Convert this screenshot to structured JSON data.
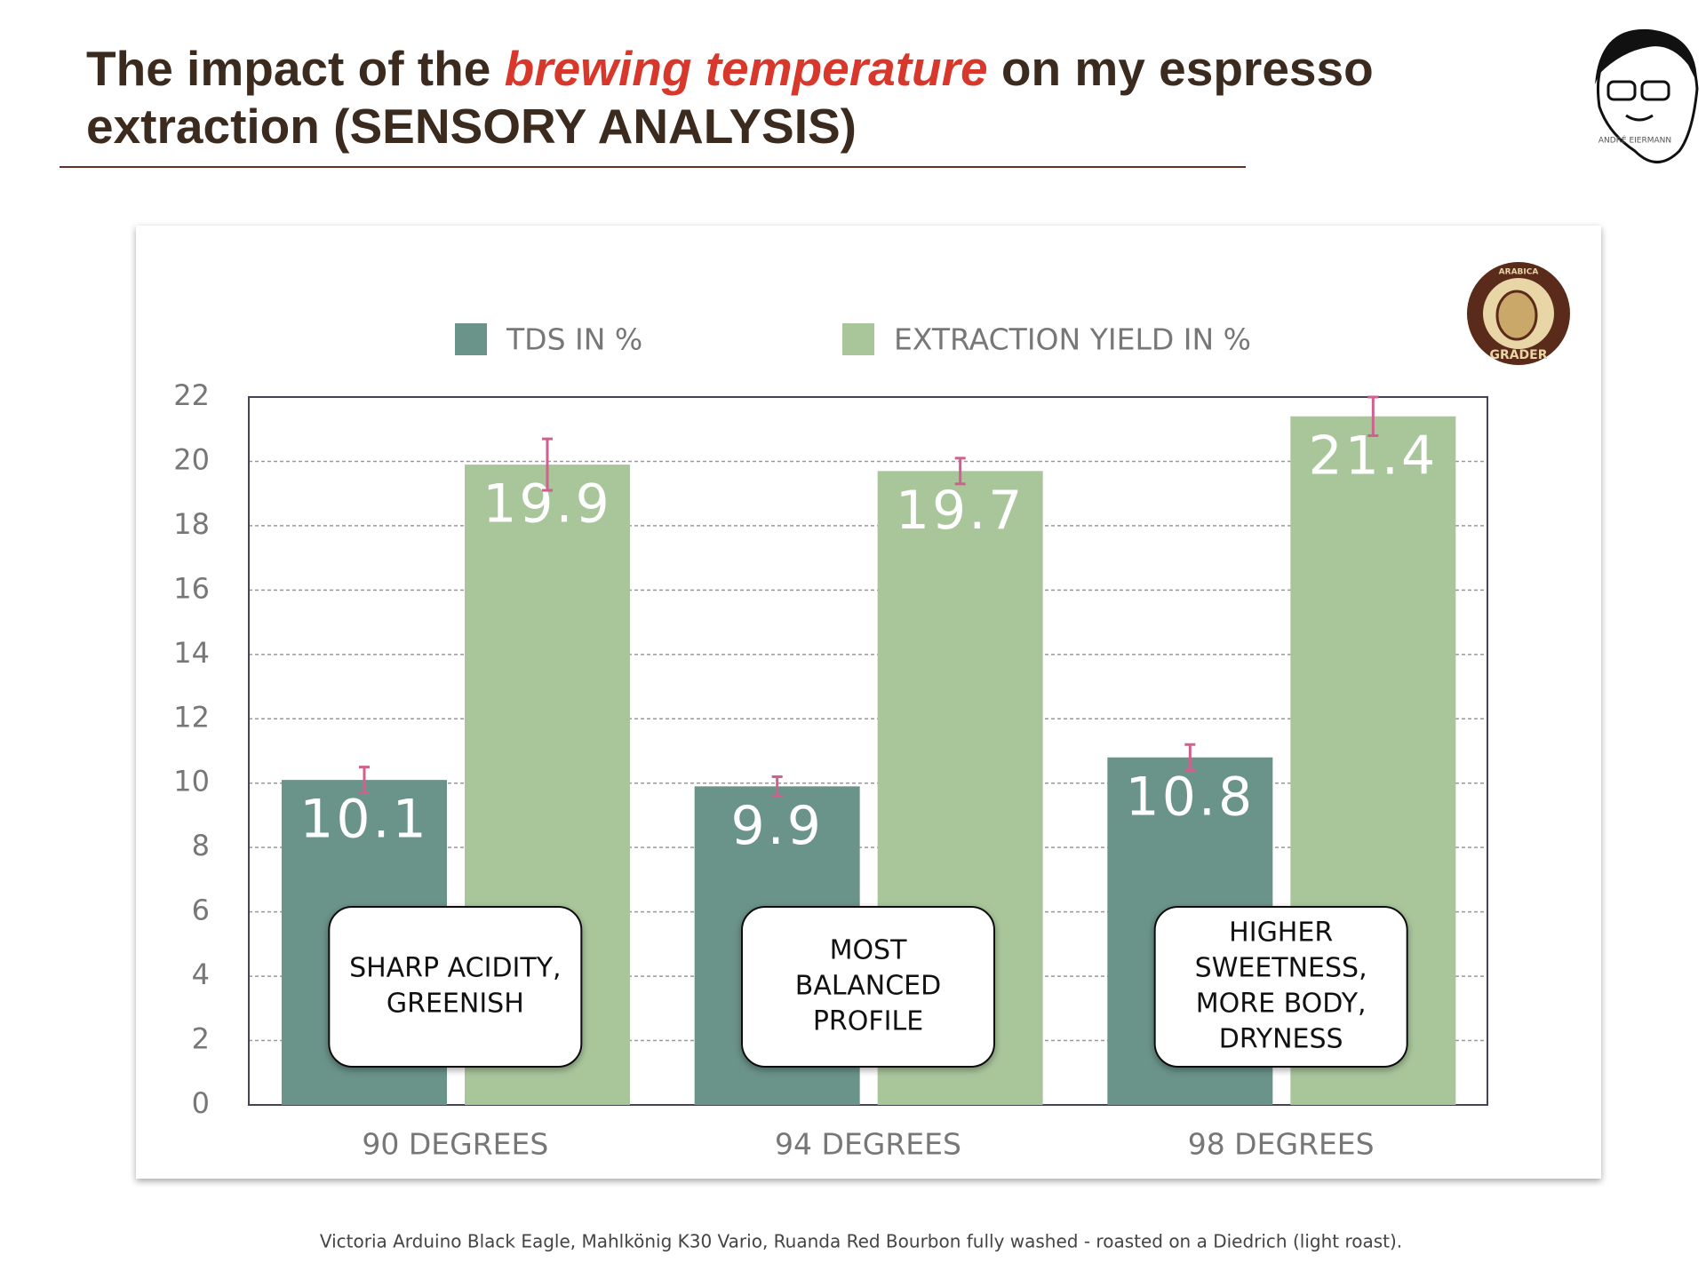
{
  "header": {
    "title": [
      "The impact of the ",
      "brewing temperature",
      " on my espresso",
      "extraction (SENSORY ANALYSIS)"
    ],
    "logo_caption": "ANDRÉ EIERMANN"
  },
  "chart_data": {
    "type": "bar",
    "categories": [
      "90 DEGREES",
      "94 DEGREES",
      "98 DEGREES"
    ],
    "series": [
      {
        "name": "TDS IN %",
        "color": "#6a938a",
        "values": [
          10.1,
          9.9,
          10.8
        ],
        "errors": [
          0.4,
          0.3,
          0.4
        ]
      },
      {
        "name": "EXTRACTION YIELD IN %",
        "color": "#a9c69b",
        "values": [
          19.9,
          19.7,
          21.4
        ],
        "errors": [
          0.8,
          0.4,
          0.6
        ]
      }
    ],
    "ylim": [
      0,
      22
    ],
    "yticks": [
      0,
      2,
      4,
      6,
      8,
      10,
      12,
      14,
      16,
      18,
      20,
      22
    ],
    "grid": true,
    "legend": "top",
    "annotations": [
      {
        "lines": [
          "SHARP ACIDITY,",
          "GREENISH"
        ]
      },
      {
        "lines": [
          "MOST",
          "BALANCED",
          "PROFILE"
        ]
      },
      {
        "lines": [
          "HIGHER",
          "SWEETNESS,",
          "MORE BODY,",
          "DRYNESS"
        ]
      }
    ],
    "logo": {
      "top": "ARABICA",
      "bottom": "GRADER"
    }
  },
  "footnote": "Victoria Arduino Black Eagle, Mahlkönig K30 Vario, Ruanda Red Bourbon fully washed - roasted on a Diedrich (light roast)."
}
